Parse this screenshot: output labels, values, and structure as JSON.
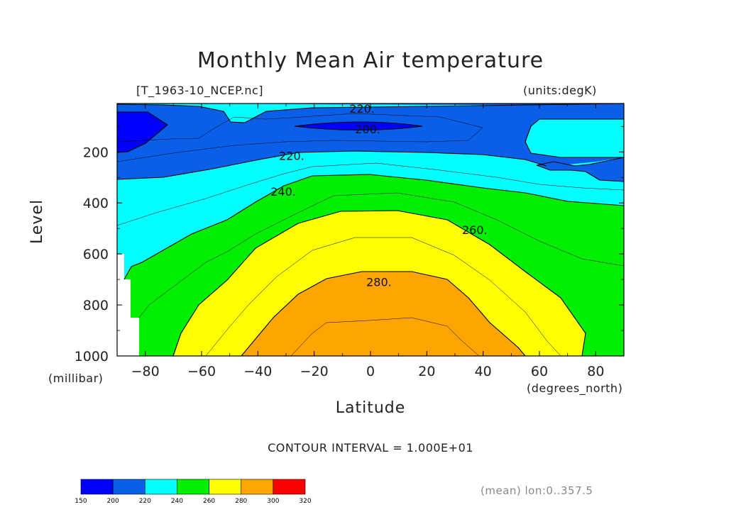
{
  "chart_data": {
    "type": "heatmap",
    "title": "Monthly Mean Air temperature",
    "subtitle": "[T_1963-10_NCEP.nc]",
    "units": "(units:degK)",
    "xlabel": "Latitude",
    "xunit": "(degrees_north)",
    "ylabel": "Level",
    "yunit": "(millibar)",
    "xlim": [
      -90,
      90
    ],
    "ylim": [
      1000,
      10
    ],
    "xticks": [
      -80,
      -60,
      -40,
      -20,
      0,
      20,
      40,
      60,
      80
    ],
    "xtick_labels": [
      "−80",
      "−60",
      "−40",
      "−20",
      "0",
      "20",
      "40",
      "60",
      "80"
    ],
    "yticks": [
      200,
      400,
      600,
      800,
      1000
    ],
    "ytick_labels": [
      "200",
      "400",
      "600",
      "800",
      "1000"
    ],
    "contour_interval_text": "CONTOUR INTERVAL = 1.000E+01",
    "contour_labels": [
      {
        "text": "220.",
        "x": -3,
        "level": 30
      },
      {
        "text": "200.",
        "x": -1,
        "level": 110
      },
      {
        "text": "220.",
        "x": -28,
        "level": 215
      },
      {
        "text": "240.",
        "x": -31,
        "level": 355
      },
      {
        "text": "260.",
        "x": 37,
        "level": 505
      },
      {
        "text": "280.",
        "x": 3,
        "level": 710
      }
    ],
    "colorbar": {
      "bins": [
        150,
        200,
        220,
        240,
        260,
        280,
        300,
        320
      ],
      "labels": [
        "150",
        "200",
        "220",
        "240",
        "260",
        "280",
        "300",
        "320"
      ],
      "colors": [
        "#0000ff",
        "#0a5fe8",
        "#00ffff",
        "#00ee00",
        "#ffff00",
        "#ffa500",
        "#ff0000"
      ]
    },
    "footnote": "(mean) lon:0..357.5"
  }
}
